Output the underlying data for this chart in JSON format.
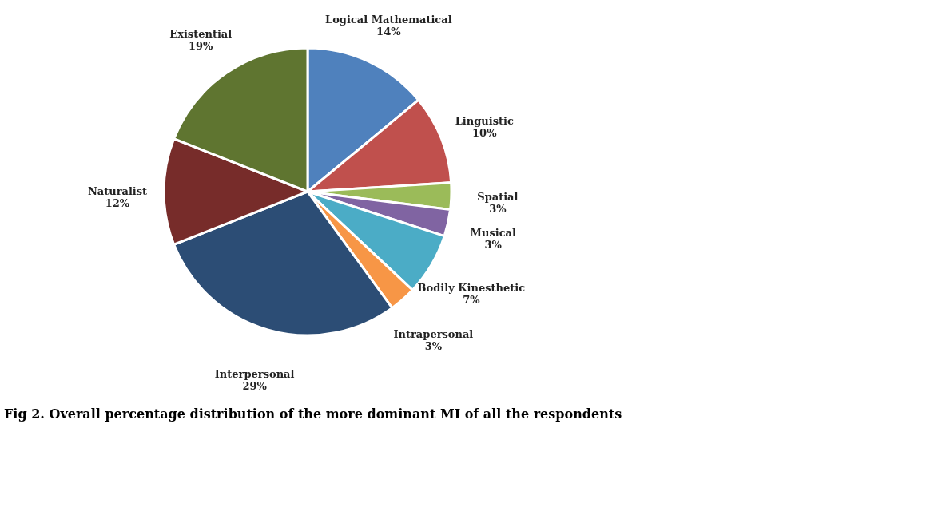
{
  "chart_data": {
    "type": "pie",
    "categories": [
      "Logical Mathematical",
      "Linguistic",
      "Spatial",
      "Musical",
      "Bodily Kinesthetic",
      "Intrapersonal",
      "Interpersonal",
      "Naturalist",
      "Existential"
    ],
    "values": [
      14,
      10,
      3,
      3,
      7,
      3,
      29,
      12,
      19
    ],
    "value_labels": [
      "14%",
      "10%",
      "3%",
      "3%",
      "7%",
      "3%",
      "29%",
      "12%",
      "19%"
    ],
    "colors": [
      "#4f81bd",
      "#c0504d",
      "#9bbb59",
      "#8064a2",
      "#4bacc6",
      "#f79646",
      "#2c4d75",
      "#772c2a",
      "#5f7530"
    ],
    "legend": false,
    "annotations": [
      "Fig 2. Overall percentage distribution of the more dominant MI of all the respondents"
    ]
  }
}
